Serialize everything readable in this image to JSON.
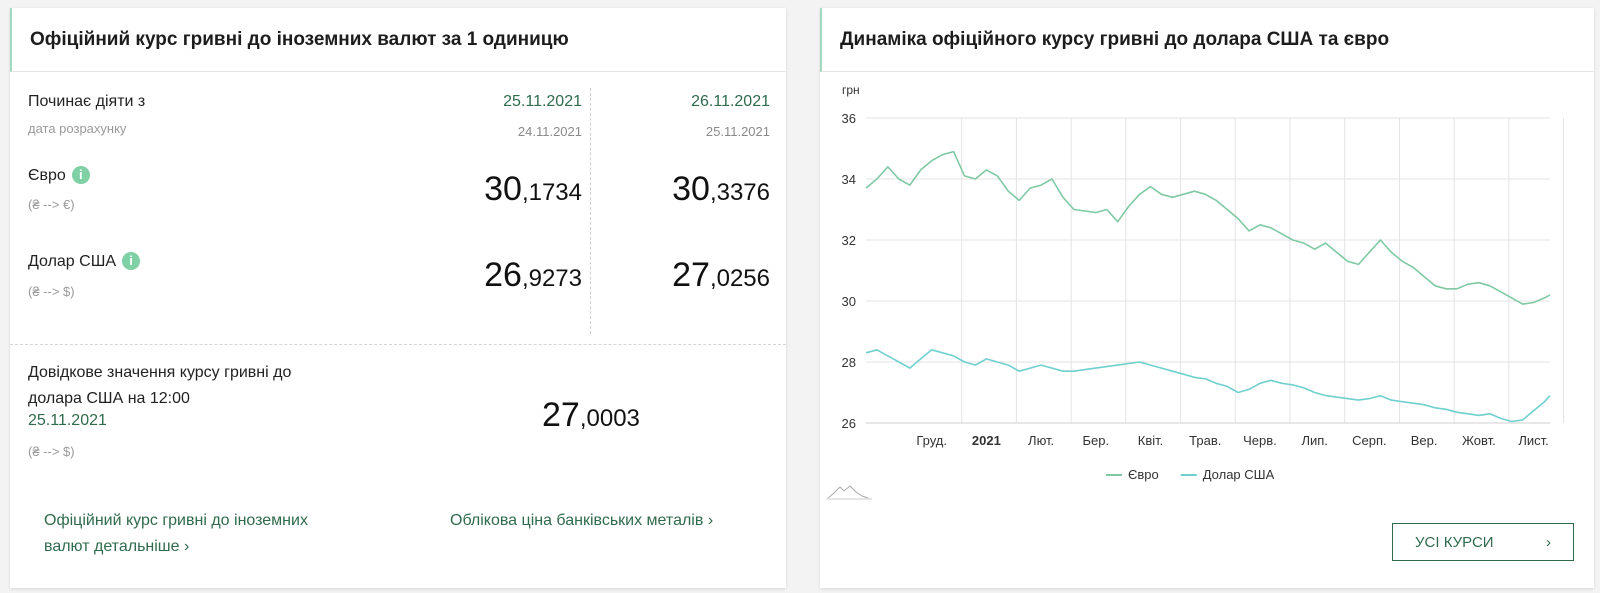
{
  "left": {
    "title": "Офіційний курс гривні до іноземних валют за 1 одиницю",
    "starts_label": "Починає діяти з",
    "calc_label": "дата розрахунку",
    "col1": {
      "date": "25.11.2021",
      "calc_date": "24.11.2021"
    },
    "col2": {
      "date": "26.11.2021",
      "calc_date": "25.11.2021"
    },
    "euro": {
      "label": "Євро",
      "sub": "(₴ --> €)",
      "info": "i",
      "col1_int": "30",
      "col1_dec": ",1734",
      "col2_int": "30",
      "col2_dec": ",3376"
    },
    "usd": {
      "label": "Долар США",
      "sub": "(₴ --> $)",
      "info": "i",
      "col1_int": "26",
      "col1_dec": ",9273",
      "col2_int": "27",
      "col2_dec": ",0256"
    },
    "ref": {
      "label_line1": "Довідкове значення курсу гривні до",
      "label_line2": "долара США на 12:00",
      "date": "25.11.2021",
      "sub": "(₴ --> $)",
      "value_int": "27",
      "value_dec": ",0003"
    },
    "link1_line1": "Офіційний курс гривні до іноземних",
    "link1_line2": "валют детальніше",
    "link2": "Облікова ціна банківських металів",
    "chevron": "›"
  },
  "right": {
    "title": "Динаміка офіційного курсу гривні до долара США та євро",
    "button_label": "УСІ КУРСИ",
    "button_chevron": "›"
  },
  "chart_data": {
    "type": "line",
    "ylabel": "грн",
    "ylim": [
      26,
      36
    ],
    "yticks": [
      26,
      28,
      30,
      32,
      34,
      36
    ],
    "x_range": [
      -1.2,
      11.3
    ],
    "xticks": [
      {
        "label": "Груд.",
        "pos": 0,
        "bold": false
      },
      {
        "label": "2021",
        "pos": 1,
        "bold": true
      },
      {
        "label": "Лют.",
        "pos": 2,
        "bold": false
      },
      {
        "label": "Бер.",
        "pos": 3,
        "bold": false
      },
      {
        "label": "Квіт.",
        "pos": 4,
        "bold": false
      },
      {
        "label": "Трав.",
        "pos": 5,
        "bold": false
      },
      {
        "label": "Черв.",
        "pos": 6,
        "bold": false
      },
      {
        "label": "Лип.",
        "pos": 7,
        "bold": false
      },
      {
        "label": "Серп.",
        "pos": 8,
        "bold": false
      },
      {
        "label": "Вер.",
        "pos": 9,
        "bold": false
      },
      {
        "label": "Жовт.",
        "pos": 10,
        "bold": false
      },
      {
        "label": "Лист.",
        "pos": 11,
        "bold": false
      }
    ],
    "grid": true,
    "legend": "bottom",
    "series": [
      {
        "name": "Євро",
        "color": "#7fc9a4",
        "x": [
          -1.2,
          -1.0,
          -0.8,
          -0.6,
          -0.4,
          -0.2,
          0.0,
          0.2,
          0.4,
          0.6,
          0.8,
          1.0,
          1.2,
          1.4,
          1.6,
          1.8,
          2.0,
          2.2,
          2.4,
          2.6,
          2.8,
          3.0,
          3.2,
          3.4,
          3.6,
          3.8,
          4.0,
          4.2,
          4.4,
          4.6,
          4.8,
          5.0,
          5.2,
          5.4,
          5.6,
          5.8,
          6.0,
          6.2,
          6.4,
          6.6,
          6.8,
          7.0,
          7.2,
          7.4,
          7.6,
          7.8,
          8.0,
          8.2,
          8.4,
          8.6,
          8.8,
          9.0,
          9.2,
          9.4,
          9.6,
          9.8,
          10.0,
          10.2,
          10.4,
          10.6,
          10.8,
          11.0,
          11.2,
          11.3
        ],
        "values": [
          33.7,
          34.0,
          34.4,
          34.0,
          33.8,
          34.3,
          34.6,
          34.8,
          34.9,
          34.1,
          34.0,
          34.3,
          34.1,
          33.6,
          33.3,
          33.7,
          33.8,
          34.0,
          33.4,
          33.0,
          32.95,
          32.9,
          33.0,
          32.6,
          33.1,
          33.5,
          33.75,
          33.5,
          33.4,
          33.5,
          33.6,
          33.5,
          33.3,
          33.0,
          32.7,
          32.3,
          32.5,
          32.4,
          32.2,
          32.0,
          31.9,
          31.7,
          31.9,
          31.6,
          31.3,
          31.2,
          31.6,
          32.0,
          31.6,
          31.3,
          31.1,
          30.8,
          30.5,
          30.4,
          30.4,
          30.55,
          30.6,
          30.5,
          30.3,
          30.1,
          29.9,
          29.95,
          30.1,
          30.2
        ]
      },
      {
        "name": "Долар США",
        "color": "#6fd0cf",
        "x": [
          -1.2,
          -1.0,
          -0.8,
          -0.6,
          -0.4,
          -0.2,
          0.0,
          0.2,
          0.4,
          0.6,
          0.8,
          1.0,
          1.2,
          1.4,
          1.6,
          1.8,
          2.0,
          2.2,
          2.4,
          2.6,
          2.8,
          3.0,
          3.2,
          3.4,
          3.6,
          3.8,
          4.0,
          4.2,
          4.4,
          4.6,
          4.8,
          5.0,
          5.2,
          5.4,
          5.6,
          5.8,
          6.0,
          6.2,
          6.4,
          6.6,
          6.8,
          7.0,
          7.2,
          7.4,
          7.6,
          7.8,
          8.0,
          8.2,
          8.4,
          8.6,
          8.8,
          9.0,
          9.2,
          9.4,
          9.6,
          9.8,
          10.0,
          10.2,
          10.4,
          10.6,
          10.8,
          11.0,
          11.2,
          11.3
        ],
        "values": [
          28.3,
          28.4,
          28.2,
          28.0,
          27.8,
          28.1,
          28.4,
          28.3,
          28.2,
          28.0,
          27.9,
          28.1,
          28.0,
          27.9,
          27.7,
          27.8,
          27.9,
          27.8,
          27.7,
          27.7,
          27.75,
          27.8,
          27.85,
          27.9,
          27.95,
          28.0,
          27.9,
          27.8,
          27.7,
          27.6,
          27.5,
          27.45,
          27.3,
          27.2,
          27.0,
          27.1,
          27.3,
          27.4,
          27.3,
          27.25,
          27.15,
          27.0,
          26.9,
          26.85,
          26.8,
          26.75,
          26.8,
          26.9,
          26.75,
          26.7,
          26.65,
          26.6,
          26.5,
          26.45,
          26.35,
          26.3,
          26.25,
          26.3,
          26.15,
          26.05,
          26.1,
          26.4,
          26.7,
          26.9
        ]
      }
    ]
  }
}
